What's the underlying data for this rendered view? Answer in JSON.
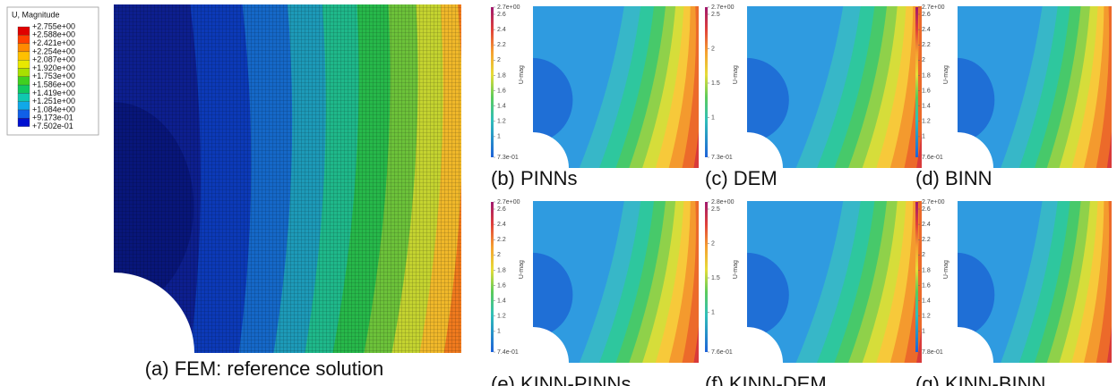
{
  "fem": {
    "legend_title": "U, Magnitude",
    "legend_labels": [
      "+2.755e+00",
      "+2.588e+00",
      "+2.421e+00",
      "+2.254e+00",
      "+2.087e+00",
      "+1.920e+00",
      "+1.753e+00",
      "+1.586e+00",
      "+1.419e+00",
      "+1.251e+00",
      "+1.084e+00",
      "+9.173e-01",
      "+7.502e-01"
    ],
    "caption": "(a) FEM: reference solution"
  },
  "panels": [
    {
      "caption": "(b) PINNs",
      "colorbar_title": "U-mag",
      "colorbar_ticks": [
        "2.7e+00",
        "2.6",
        "2.4",
        "2.2",
        "2",
        "1.8",
        "1.6",
        "1.4",
        "1.2",
        "1",
        "7.3e-01"
      ]
    },
    {
      "caption": "(c) DEM",
      "colorbar_title": "U-mag",
      "colorbar_ticks": [
        "2.7e+00",
        "2.5",
        "2",
        "1.5",
        "1",
        "7.3e-01"
      ]
    },
    {
      "caption": "(d) BINN",
      "colorbar_title": "U-mag",
      "colorbar_ticks": [
        "2.7e+00",
        "2.6",
        "2.4",
        "2.2",
        "2",
        "1.8",
        "1.6",
        "1.4",
        "1.2",
        "1",
        "7.6e-01"
      ]
    },
    {
      "caption": "(e) KINN-PINNs",
      "colorbar_title": "U-mag",
      "colorbar_ticks": [
        "2.7e+00",
        "2.6",
        "2.4",
        "2.2",
        "2",
        "1.8",
        "1.6",
        "1.4",
        "1.2",
        "1",
        "7.4e-01"
      ]
    },
    {
      "caption": "(f) KINN-DEM",
      "colorbar_title": "U-mag",
      "colorbar_ticks": [
        "2.8e+00",
        "2.5",
        "2",
        "1.5",
        "1",
        "7.6e-01"
      ]
    },
    {
      "caption": "(g) KINN-BINN",
      "colorbar_title": "U-mag",
      "colorbar_ticks": [
        "2.7e+00",
        "2.6",
        "2.4",
        "2.2",
        "2",
        "1.8",
        "1.6",
        "1.4",
        "1.2",
        "1",
        "7.8e-01"
      ]
    }
  ]
}
